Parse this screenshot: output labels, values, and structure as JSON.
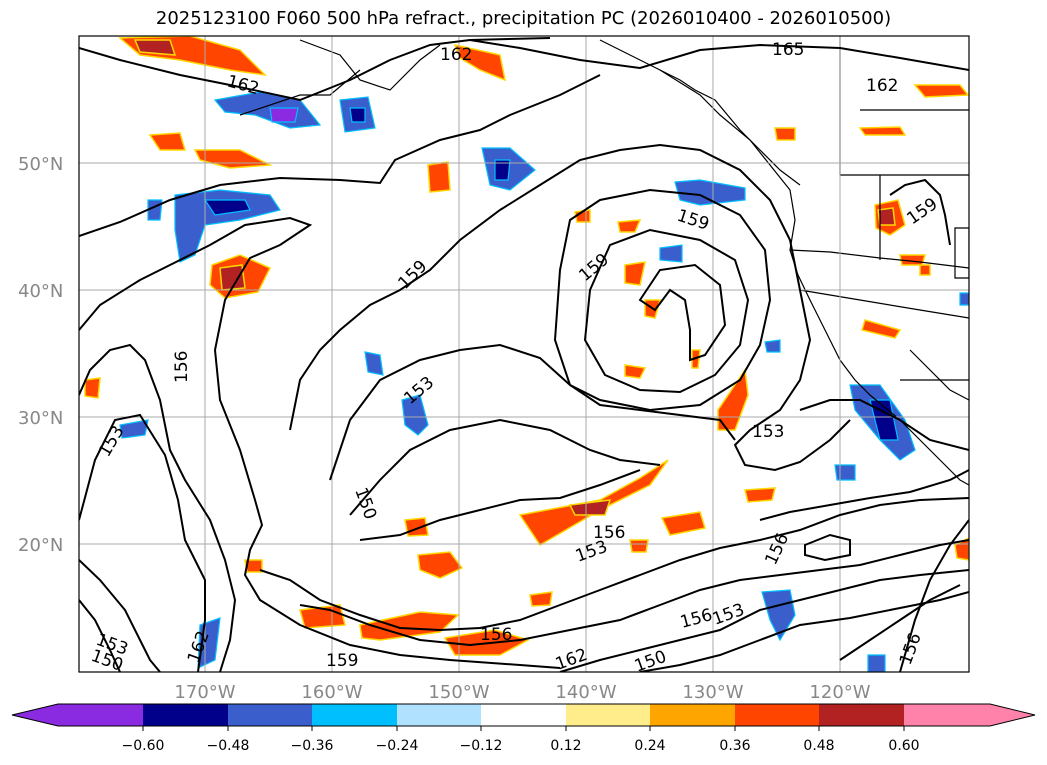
{
  "title": "2025123100 F060 500 hPa refract., precipitation PC (2026010400 - 2026010500)",
  "latitudes": [
    "50°N",
    "40°N",
    "30°N",
    "20°N"
  ],
  "longitudes": [
    "170°W",
    "160°W",
    "150°W",
    "140°W",
    "130°W",
    "120°W"
  ],
  "contour_labels": [
    "162",
    "162",
    "165",
    "162",
    "159",
    "159",
    "159",
    "159",
    "156",
    "153",
    "153",
    "153",
    "150",
    "156",
    "153",
    "156",
    "156",
    "153",
    "153",
    "156",
    "162",
    "159",
    "150",
    "162",
    "150",
    "156",
    "153",
    "150",
    "159",
    "156",
    "156",
    "153"
  ],
  "colorbar": {
    "ticks": [
      "−0.60",
      "−0.48",
      "−0.36",
      "−0.24",
      "−0.12",
      "0.12",
      "0.24",
      "0.36",
      "0.48",
      "0.60"
    ],
    "colors": [
      "#8a2be2",
      "#00008b",
      "#3a5fcd",
      "#00bfff",
      "#b0e2ff",
      "#ffffff",
      "#ffec8b",
      "#ffa500",
      "#ff4500",
      "#b22222",
      "#ff82ab"
    ]
  }
}
